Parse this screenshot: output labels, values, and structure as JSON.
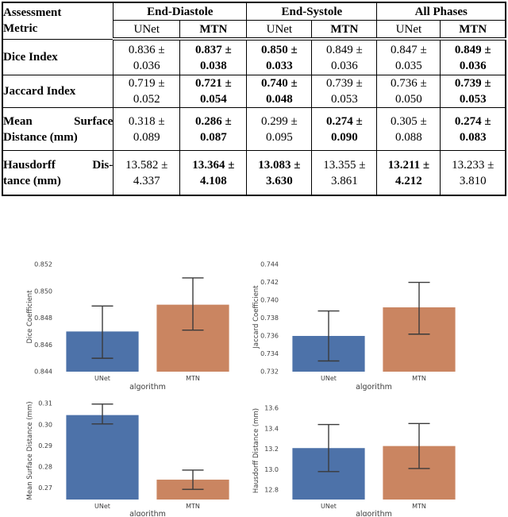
{
  "table": {
    "header": {
      "metric": {
        "lines": [
          "Assessment",
          "Metric"
        ]
      },
      "groups": [
        {
          "label": "End-Diastole",
          "sub": [
            "UNet",
            "MTN"
          ]
        },
        {
          "label": "End-Systole",
          "sub": [
            "UNet",
            "MTN"
          ]
        },
        {
          "label": "All Phases",
          "sub": [
            "UNet",
            "MTN"
          ]
        }
      ]
    },
    "rows": [
      {
        "label_lines": [
          "Dice Index"
        ],
        "cells": [
          {
            "line1": "0.836 ±",
            "line2": "0.036",
            "bold": false
          },
          {
            "line1": "0.837 ±",
            "line2": "0.038",
            "bold": true
          },
          {
            "line1": "0.850 ±",
            "line2": "0.033",
            "bold": true
          },
          {
            "line1": "0.849 ±",
            "line2": "0.036",
            "bold": false
          },
          {
            "line1": "0.847 ±",
            "line2": "0.035",
            "bold": false
          },
          {
            "line1": "0.849 ±",
            "line2": "0.036",
            "bold": true
          }
        ]
      },
      {
        "label_lines": [
          "Jaccard Index"
        ],
        "cells": [
          {
            "line1": "0.719 ±",
            "line2": "0.052",
            "bold": false
          },
          {
            "line1": "0.721 ±",
            "line2": "0.054",
            "bold": true
          },
          {
            "line1": "0.740 ±",
            "line2": "0.048",
            "bold": true
          },
          {
            "line1": "0.739 ±",
            "line2": "0.053",
            "bold": false
          },
          {
            "line1": "0.736 ±",
            "line2": "0.050",
            "bold": false
          },
          {
            "line1": "0.739 ±",
            "line2": "0.053",
            "bold": true
          }
        ]
      },
      {
        "label_lines": [
          "Mean Surface",
          "Distance (mm)"
        ],
        "cells": [
          {
            "line1": "0.318 ±",
            "line2": "0.089",
            "bold": false
          },
          {
            "line1": "0.286 ±",
            "line2": "0.087",
            "bold": true
          },
          {
            "line1": "0.299 ±",
            "line2": "0.095",
            "bold": false
          },
          {
            "line1": "0.274 ±",
            "line2": "0.090",
            "bold": true
          },
          {
            "line1": "0.305 ±",
            "line2": "0.088",
            "bold": false
          },
          {
            "line1": "0.274 ±",
            "line2": "0.083",
            "bold": true
          }
        ]
      },
      {
        "label_lines": [
          "Hausdorff Dis-",
          "tance (mm)"
        ],
        "cells": [
          {
            "line1": "13.582 ±",
            "line2": "4.337",
            "bold": false
          },
          {
            "line1": "13.364 ±",
            "line2": "4.108",
            "bold": true
          },
          {
            "line1": "13.083 ±",
            "line2": "3.630",
            "bold": true
          },
          {
            "line1": "13.355 ±",
            "line2": "3.861",
            "bold": false
          },
          {
            "line1": "13.211 ±",
            "line2": "4.212",
            "bold": true
          },
          {
            "line1": "13.233 ±",
            "line2": "3.810",
            "bold": false
          }
        ]
      }
    ]
  },
  "colors": {
    "bar_unet": "#4d72a9",
    "bar_mtn": "#ca8561",
    "error_bar": "#3a3a3a",
    "chart_text": "#3c3c3c"
  },
  "chart_data": [
    {
      "type": "bar",
      "title": "",
      "xlabel": "algorithm",
      "ylabel": "Dice Coefficient",
      "categories": [
        "UNet",
        "MTN"
      ],
      "values": [
        0.847,
        0.849
      ],
      "errors_low": [
        0.845,
        0.8471
      ],
      "errors_high": [
        0.8489,
        0.851
      ],
      "ytick_labels": [
        "0.844",
        "0.846",
        "0.848",
        "0.850",
        "0.852"
      ],
      "ytick_values": [
        0.844,
        0.846,
        0.848,
        0.85,
        0.852
      ],
      "ylim": [
        0.844,
        0.85218
      ],
      "grid": false,
      "legend": "none"
    },
    {
      "type": "bar",
      "title": "",
      "xlabel": "algorithm",
      "ylabel": "Jaccard Coefficient",
      "categories": [
        "UNet",
        "MTN"
      ],
      "values": [
        0.736,
        0.7392
      ],
      "errors_low": [
        0.7332,
        0.7362
      ],
      "errors_high": [
        0.7388,
        0.742
      ],
      "ytick_labels": [
        "0.732",
        "0.734",
        "0.736",
        "0.738",
        "0.740",
        "0.742",
        "0.744"
      ],
      "ytick_values": [
        0.732,
        0.734,
        0.736,
        0.738,
        0.74,
        0.742,
        0.744
      ],
      "ylim": [
        0.732,
        0.74427
      ],
      "grid": false,
      "legend": "none"
    },
    {
      "type": "bar",
      "title": "",
      "xlabel": "algorithm",
      "ylabel": "Mean Surface Distance (mm)",
      "categories": [
        "UNet",
        "MTN"
      ],
      "values": [
        0.3045,
        0.274
      ],
      "errors_low": [
        0.3003,
        0.2694
      ],
      "errors_high": [
        0.3097,
        0.2785
      ],
      "ytick_labels": [
        "0.27",
        "0.28",
        "0.29",
        "0.30",
        "0.31"
      ],
      "ytick_values": [
        0.27,
        0.28,
        0.29,
        0.3,
        0.31
      ],
      "ylim": [
        0.2646,
        0.31075
      ],
      "grid": false,
      "legend": "none"
    },
    {
      "type": "bar",
      "title": "",
      "xlabel": "algorithm",
      "ylabel": "Hausdorff Distance (mm)",
      "categories": [
        "UNet",
        "MTN"
      ],
      "values": [
        13.21,
        13.23
      ],
      "errors_low": [
        12.98,
        13.01
      ],
      "errors_high": [
        13.44,
        13.45
      ],
      "ytick_labels": [
        "12.8",
        "13.0",
        "13.2",
        "13.4",
        "13.6"
      ],
      "ytick_values": [
        12.8,
        13.0,
        13.2,
        13.4,
        13.6
      ],
      "ylim": [
        12.707,
        13.662
      ],
      "grid": false,
      "legend": "none"
    }
  ]
}
